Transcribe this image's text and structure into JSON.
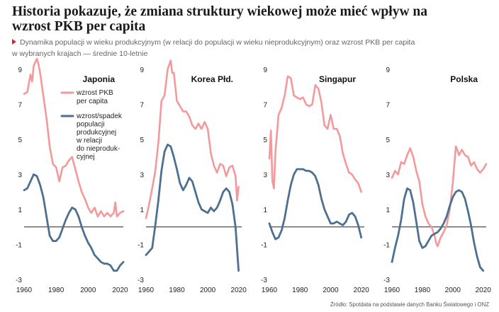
{
  "title": "Historia pokazuje, że zmiana struktury wiekowej może mieć wpływ na wzrost PKB per capita",
  "subtitle_line1": "Dynamika populacji w wieku produkcyjnym (w relacji do populacji w wieku nieprodukcyjnym) oraz wzrost PKB per capita",
  "subtitle_line2": "w wybranych krajach — średnie 10-letnie",
  "source": "Źródło: Spotdata na podstawie danych Banku Światowego i ONZ",
  "colors": {
    "gdp": "#f4999b",
    "population": "#4d7091",
    "zero": "#222222"
  },
  "legend": {
    "gdp": [
      "wzrost PKB",
      "per capita"
    ],
    "population": [
      "wzrost/spadek",
      "populacji",
      "produkcyjnej",
      "w relacji",
      "do nieproduk-",
      "cyjnej"
    ]
  },
  "chart_data": [
    {
      "type": "line",
      "title": "Japonia",
      "ylim": [
        -3,
        9
      ],
      "yticks": [
        9,
        7,
        5,
        3,
        1,
        -1,
        -3
      ],
      "xlim": [
        1960,
        2022
      ],
      "xticks": [
        1960,
        1980,
        2000,
        2020
      ],
      "series": [
        {
          "name": "wzrost PKB per capita",
          "x": [
            1960,
            1962,
            1964,
            1965,
            1966,
            1968,
            1969,
            1970,
            1972,
            1974,
            1976,
            1978,
            1980,
            1982,
            1984,
            1986,
            1988,
            1990,
            1992,
            1994,
            1996,
            1998,
            2000,
            2002,
            2004,
            2006,
            2008,
            2010,
            2012,
            2014,
            2016,
            2017,
            2018,
            2020,
            2022
          ],
          "y": [
            7.6,
            7.7,
            8.7,
            8.3,
            9.2,
            9.6,
            9.3,
            8.8,
            7.5,
            6.2,
            4.6,
            3.6,
            3.4,
            2.6,
            3.4,
            3.5,
            3.8,
            4.0,
            3.3,
            2.6,
            2.0,
            1.6,
            1.1,
            0.8,
            1.1,
            0.6,
            0.9,
            0.6,
            0.8,
            0.6,
            0.8,
            1.4,
            0.6,
            0.8,
            0.9
          ]
        },
        {
          "name": "wzrost/spadek populacji produkcyjnej w relacji do nieprodukcyjnej",
          "x": [
            1960,
            1962,
            1964,
            1966,
            1968,
            1970,
            1972,
            1974,
            1976,
            1978,
            1980,
            1982,
            1984,
            1986,
            1988,
            1990,
            1992,
            1994,
            1996,
            1998,
            2000,
            2002,
            2004,
            2006,
            2008,
            2010,
            2012,
            2014,
            2016,
            2018,
            2020,
            2022
          ],
          "y": [
            2.1,
            2.2,
            2.6,
            3.0,
            2.9,
            2.4,
            1.7,
            0.6,
            -0.5,
            -0.8,
            -0.8,
            -0.6,
            -0.1,
            0.4,
            0.8,
            1.1,
            1.0,
            0.6,
            0.0,
            -0.5,
            -0.9,
            -1.2,
            -1.6,
            -1.8,
            -2.0,
            -2.1,
            -2.1,
            -2.2,
            -2.5,
            -2.5,
            -2.2,
            -2.0
          ]
        }
      ]
    },
    {
      "type": "line",
      "title": "Korea Płd.",
      "ylim": [
        -3,
        9
      ],
      "yticks": [
        9,
        7,
        5,
        3,
        1,
        -1,
        -3
      ],
      "xlim": [
        1960,
        2022
      ],
      "xticks": [
        1960,
        1980,
        2000,
        2020
      ],
      "series": [
        {
          "name": "wzrost PKB per capita",
          "x": [
            1960,
            1962,
            1964,
            1966,
            1968,
            1970,
            1972,
            1974,
            1976,
            1977,
            1978,
            1980,
            1982,
            1984,
            1986,
            1988,
            1990,
            1992,
            1994,
            1996,
            1998,
            2000,
            2002,
            2004,
            2006,
            2008,
            2010,
            2012,
            2014,
            2016,
            2018,
            2019,
            2020
          ],
          "y": [
            0.5,
            1.3,
            2.2,
            3.2,
            4.8,
            7.2,
            7.5,
            9.0,
            9.5,
            8.8,
            8.8,
            7.2,
            6.9,
            6.6,
            6.6,
            6.3,
            5.8,
            5.6,
            5.9,
            5.6,
            6.0,
            5.6,
            4.2,
            3.5,
            3.1,
            3.6,
            3.5,
            2.9,
            3.4,
            3.5,
            2.9,
            1.5,
            2.3
          ]
        },
        {
          "name": "wzrost/spadek populacji produkcyjnej w relacji do nieprodukcyjnej",
          "x": [
            1960,
            1962,
            1964,
            1966,
            1968,
            1970,
            1972,
            1974,
            1976,
            1978,
            1980,
            1982,
            1984,
            1986,
            1988,
            1990,
            1992,
            1994,
            1996,
            1998,
            2000,
            2002,
            2004,
            2006,
            2008,
            2010,
            2012,
            2014,
            2016,
            2018,
            2020
          ],
          "y": [
            -1.6,
            -1.4,
            -1.2,
            0.1,
            1.5,
            3.2,
            4.3,
            4.7,
            4.6,
            4.0,
            3.3,
            2.5,
            2.1,
            2.4,
            2.8,
            2.6,
            2.0,
            1.4,
            1.0,
            0.9,
            0.8,
            1.1,
            0.9,
            1.1,
            1.5,
            2.0,
            2.2,
            2.0,
            1.3,
            0.0,
            -2.5
          ]
        }
      ]
    },
    {
      "type": "line",
      "title": "Singapur",
      "ylim": [
        -3,
        9
      ],
      "yticks": [
        9,
        7,
        5,
        3,
        1,
        -1,
        -3
      ],
      "xlim": [
        1960,
        2022
      ],
      "xticks": [
        1960,
        1980,
        2000,
        2020
      ],
      "series": [
        {
          "name": "wzrost PKB per capita",
          "x": [
            1960,
            1961,
            1962,
            1963,
            1964,
            1966,
            1968,
            1970,
            1972,
            1974,
            1976,
            1978,
            1980,
            1982,
            1984,
            1986,
            1988,
            1990,
            1992,
            1994,
            1996,
            1998,
            2000,
            2002,
            2004,
            2006,
            2008,
            2010,
            2012,
            2014,
            2016,
            2018,
            2020
          ],
          "y": [
            3.9,
            5.5,
            2.6,
            2.2,
            4.3,
            6.4,
            6.8,
            7.5,
            8.6,
            8.5,
            7.5,
            7.4,
            7.3,
            7.4,
            7.0,
            6.9,
            7.0,
            8.1,
            7.9,
            7.1,
            5.8,
            5.6,
            6.4,
            5.6,
            5.6,
            5.2,
            4.2,
            3.6,
            3.1,
            3.0,
            2.7,
            2.5,
            2.0
          ]
        },
        {
          "name": "wzrost/spadek populacji produkcyjnej w relacji do nieprodukcyjnej",
          "x": [
            1960,
            1962,
            1964,
            1966,
            1968,
            1970,
            1972,
            1974,
            1976,
            1978,
            1980,
            1982,
            1984,
            1986,
            1988,
            1990,
            1992,
            1994,
            1996,
            1998,
            2000,
            2002,
            2004,
            2006,
            2008,
            2010,
            2012,
            2014,
            2016,
            2018,
            2020
          ],
          "y": [
            0.2,
            -0.3,
            -0.7,
            -0.6,
            -0.2,
            0.5,
            1.5,
            2.4,
            3.0,
            3.3,
            3.3,
            3.3,
            3.2,
            3.2,
            3.1,
            2.9,
            2.4,
            1.6,
            1.0,
            0.6,
            0.2,
            0.2,
            0.3,
            0.2,
            0.1,
            0.3,
            0.7,
            0.8,
            0.6,
            0.1,
            -0.6
          ]
        }
      ]
    },
    {
      "type": "line",
      "title": "Polska",
      "ylim": [
        -3,
        9
      ],
      "yticks": [
        9,
        7,
        5,
        3,
        1,
        -1,
        -3
      ],
      "xlim": [
        1960,
        2022
      ],
      "xticks": [
        1960,
        1980,
        2000,
        2020
      ],
      "series": [
        {
          "name": "wzrost PKB per capita",
          "x": [
            1960,
            1962,
            1964,
            1966,
            1968,
            1970,
            1972,
            1974,
            1976,
            1978,
            1980,
            1982,
            1984,
            1986,
            1988,
            1989,
            1990,
            1992,
            1994,
            1996,
            1998,
            2000,
            2002,
            2003,
            2004,
            2006,
            2008,
            2010,
            2012,
            2014,
            2016,
            2018,
            2020,
            2022
          ],
          "y": [
            2.8,
            3.2,
            3.0,
            3.7,
            3.6,
            4.1,
            4.5,
            4.0,
            3.2,
            2.6,
            1.3,
            0.6,
            0.2,
            0.0,
            -0.5,
            -0.9,
            -1.1,
            -0.6,
            -0.3,
            0.1,
            1.0,
            2.5,
            4.6,
            4.4,
            4.1,
            4.4,
            4.1,
            4.0,
            3.5,
            3.7,
            3.3,
            3.1,
            3.3,
            3.6
          ]
        },
        {
          "name": "wzrost/spadek populacji produkcyjnej w relacji do nieprodukcyjnej",
          "x": [
            1960,
            1962,
            1964,
            1966,
            1968,
            1970,
            1972,
            1974,
            1976,
            1978,
            1980,
            1982,
            1984,
            1986,
            1988,
            1990,
            1992,
            1994,
            1996,
            1998,
            2000,
            2002,
            2004,
            2006,
            2008,
            2010,
            2012,
            2014,
            2016,
            2018,
            2020
          ],
          "y": [
            -2.0,
            -1.2,
            -0.5,
            0.4,
            1.6,
            2.2,
            2.1,
            1.4,
            0.3,
            -0.8,
            -1.2,
            -1.1,
            -0.8,
            -0.5,
            -0.4,
            -0.3,
            -0.1,
            0.2,
            0.6,
            1.2,
            1.7,
            2.0,
            2.1,
            2.0,
            1.6,
            0.9,
            0.1,
            -0.9,
            -1.7,
            -2.3,
            -2.5
          ]
        }
      ]
    }
  ]
}
